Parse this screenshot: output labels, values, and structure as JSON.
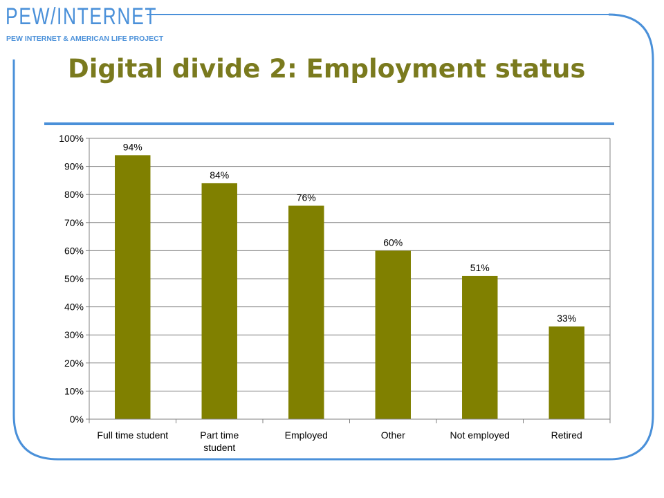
{
  "header": {
    "logo_left": "PEW",
    "logo_right": "INTERNET",
    "logo_subtitle": "PEW INTERNET & AMERICAN LIFE PROJECT",
    "brand_color": "#4a90d9"
  },
  "slide": {
    "title": "Digital divide 2: Employment status"
  },
  "chart_data": {
    "type": "bar",
    "categories": [
      "Full time student",
      "Part time student",
      "Employed",
      "Other",
      "Not employed",
      "Retired"
    ],
    "values": [
      94,
      84,
      76,
      60,
      51,
      33
    ],
    "data_labels": [
      "94%",
      "84%",
      "76%",
      "60%",
      "51%",
      "33%"
    ],
    "y_ticks": [
      "0%",
      "10%",
      "20%",
      "30%",
      "40%",
      "50%",
      "60%",
      "70%",
      "80%",
      "90%",
      "100%"
    ],
    "ylim": [
      0,
      100
    ],
    "grid": true,
    "legend": "none",
    "bar_color": "#808000",
    "title": "",
    "xlabel": "",
    "ylabel": ""
  }
}
